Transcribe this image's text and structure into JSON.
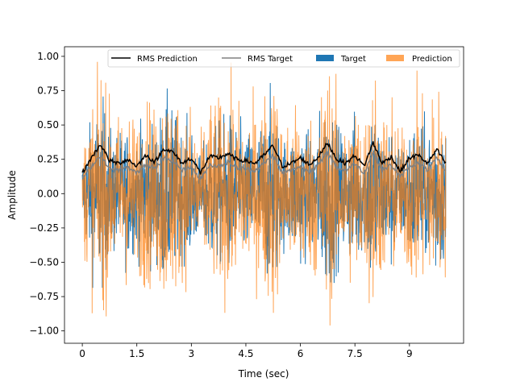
{
  "chart_data": {
    "type": "line",
    "title": "",
    "xlabel": "Time (sec)",
    "ylabel": "Amplitude",
    "xlim": [
      -0.49,
      10.49
    ],
    "ylim": [
      -1.09,
      1.07
    ],
    "xticks": [
      0,
      1.5,
      3,
      4.5,
      6,
      7.5,
      9
    ],
    "xtick_labels": [
      "0",
      "1.5",
      "3",
      "4.5",
      "6",
      "7.5",
      "9"
    ],
    "yticks": [
      -1.0,
      -0.75,
      -0.5,
      -0.25,
      0.0,
      0.25,
      0.5,
      0.75,
      1.0
    ],
    "ytick_labels": [
      "−1.00",
      "−0.75",
      "−0.50",
      "−0.25",
      "0.00",
      "0.25",
      "0.50",
      "0.75",
      "1.00"
    ],
    "legend": {
      "placement": "top-right",
      "entries": [
        "RMS Prediction",
        "RMS Target",
        "Target",
        "Prediction"
      ]
    },
    "grid": false,
    "duration_sec": 10.0,
    "rms_time": [
      0,
      0.25,
      0.5,
      0.75,
      1,
      1.25,
      1.5,
      1.75,
      2,
      2.25,
      2.5,
      2.75,
      3,
      3.25,
      3.5,
      3.75,
      4,
      4.25,
      4.5,
      4.75,
      5,
      5.25,
      5.5,
      5.75,
      6,
      6.25,
      6.5,
      6.75,
      7,
      7.25,
      7.5,
      7.75,
      8,
      8.25,
      8.5,
      8.75,
      9,
      9.25,
      9.5,
      9.75,
      10
    ],
    "series": [
      {
        "name": "RMS Prediction",
        "color": "#000000",
        "values": [
          0.15,
          0.26,
          0.36,
          0.24,
          0.22,
          0.25,
          0.2,
          0.28,
          0.23,
          0.33,
          0.3,
          0.22,
          0.26,
          0.15,
          0.27,
          0.26,
          0.29,
          0.25,
          0.24,
          0.22,
          0.28,
          0.35,
          0.2,
          0.22,
          0.26,
          0.21,
          0.27,
          0.37,
          0.25,
          0.22,
          0.28,
          0.2,
          0.37,
          0.22,
          0.27,
          0.16,
          0.26,
          0.28,
          0.22,
          0.32,
          0.22
        ]
      },
      {
        "name": "RMS Target",
        "color": "#808080",
        "values": [
          0.11,
          0.2,
          0.28,
          0.18,
          0.17,
          0.19,
          0.15,
          0.22,
          0.18,
          0.26,
          0.24,
          0.17,
          0.2,
          0.1,
          0.21,
          0.2,
          0.23,
          0.19,
          0.18,
          0.17,
          0.22,
          0.28,
          0.15,
          0.17,
          0.2,
          0.16,
          0.21,
          0.3,
          0.19,
          0.17,
          0.22,
          0.15,
          0.3,
          0.17,
          0.21,
          0.12,
          0.2,
          0.22,
          0.17,
          0.26,
          0.17
        ]
      },
      {
        "name": "Target",
        "color": "#1f77b4",
        "peak": 0.99
      },
      {
        "name": "Prediction",
        "color": "#ff7f0e",
        "alpha": 0.7,
        "peak": 0.96
      }
    ]
  }
}
